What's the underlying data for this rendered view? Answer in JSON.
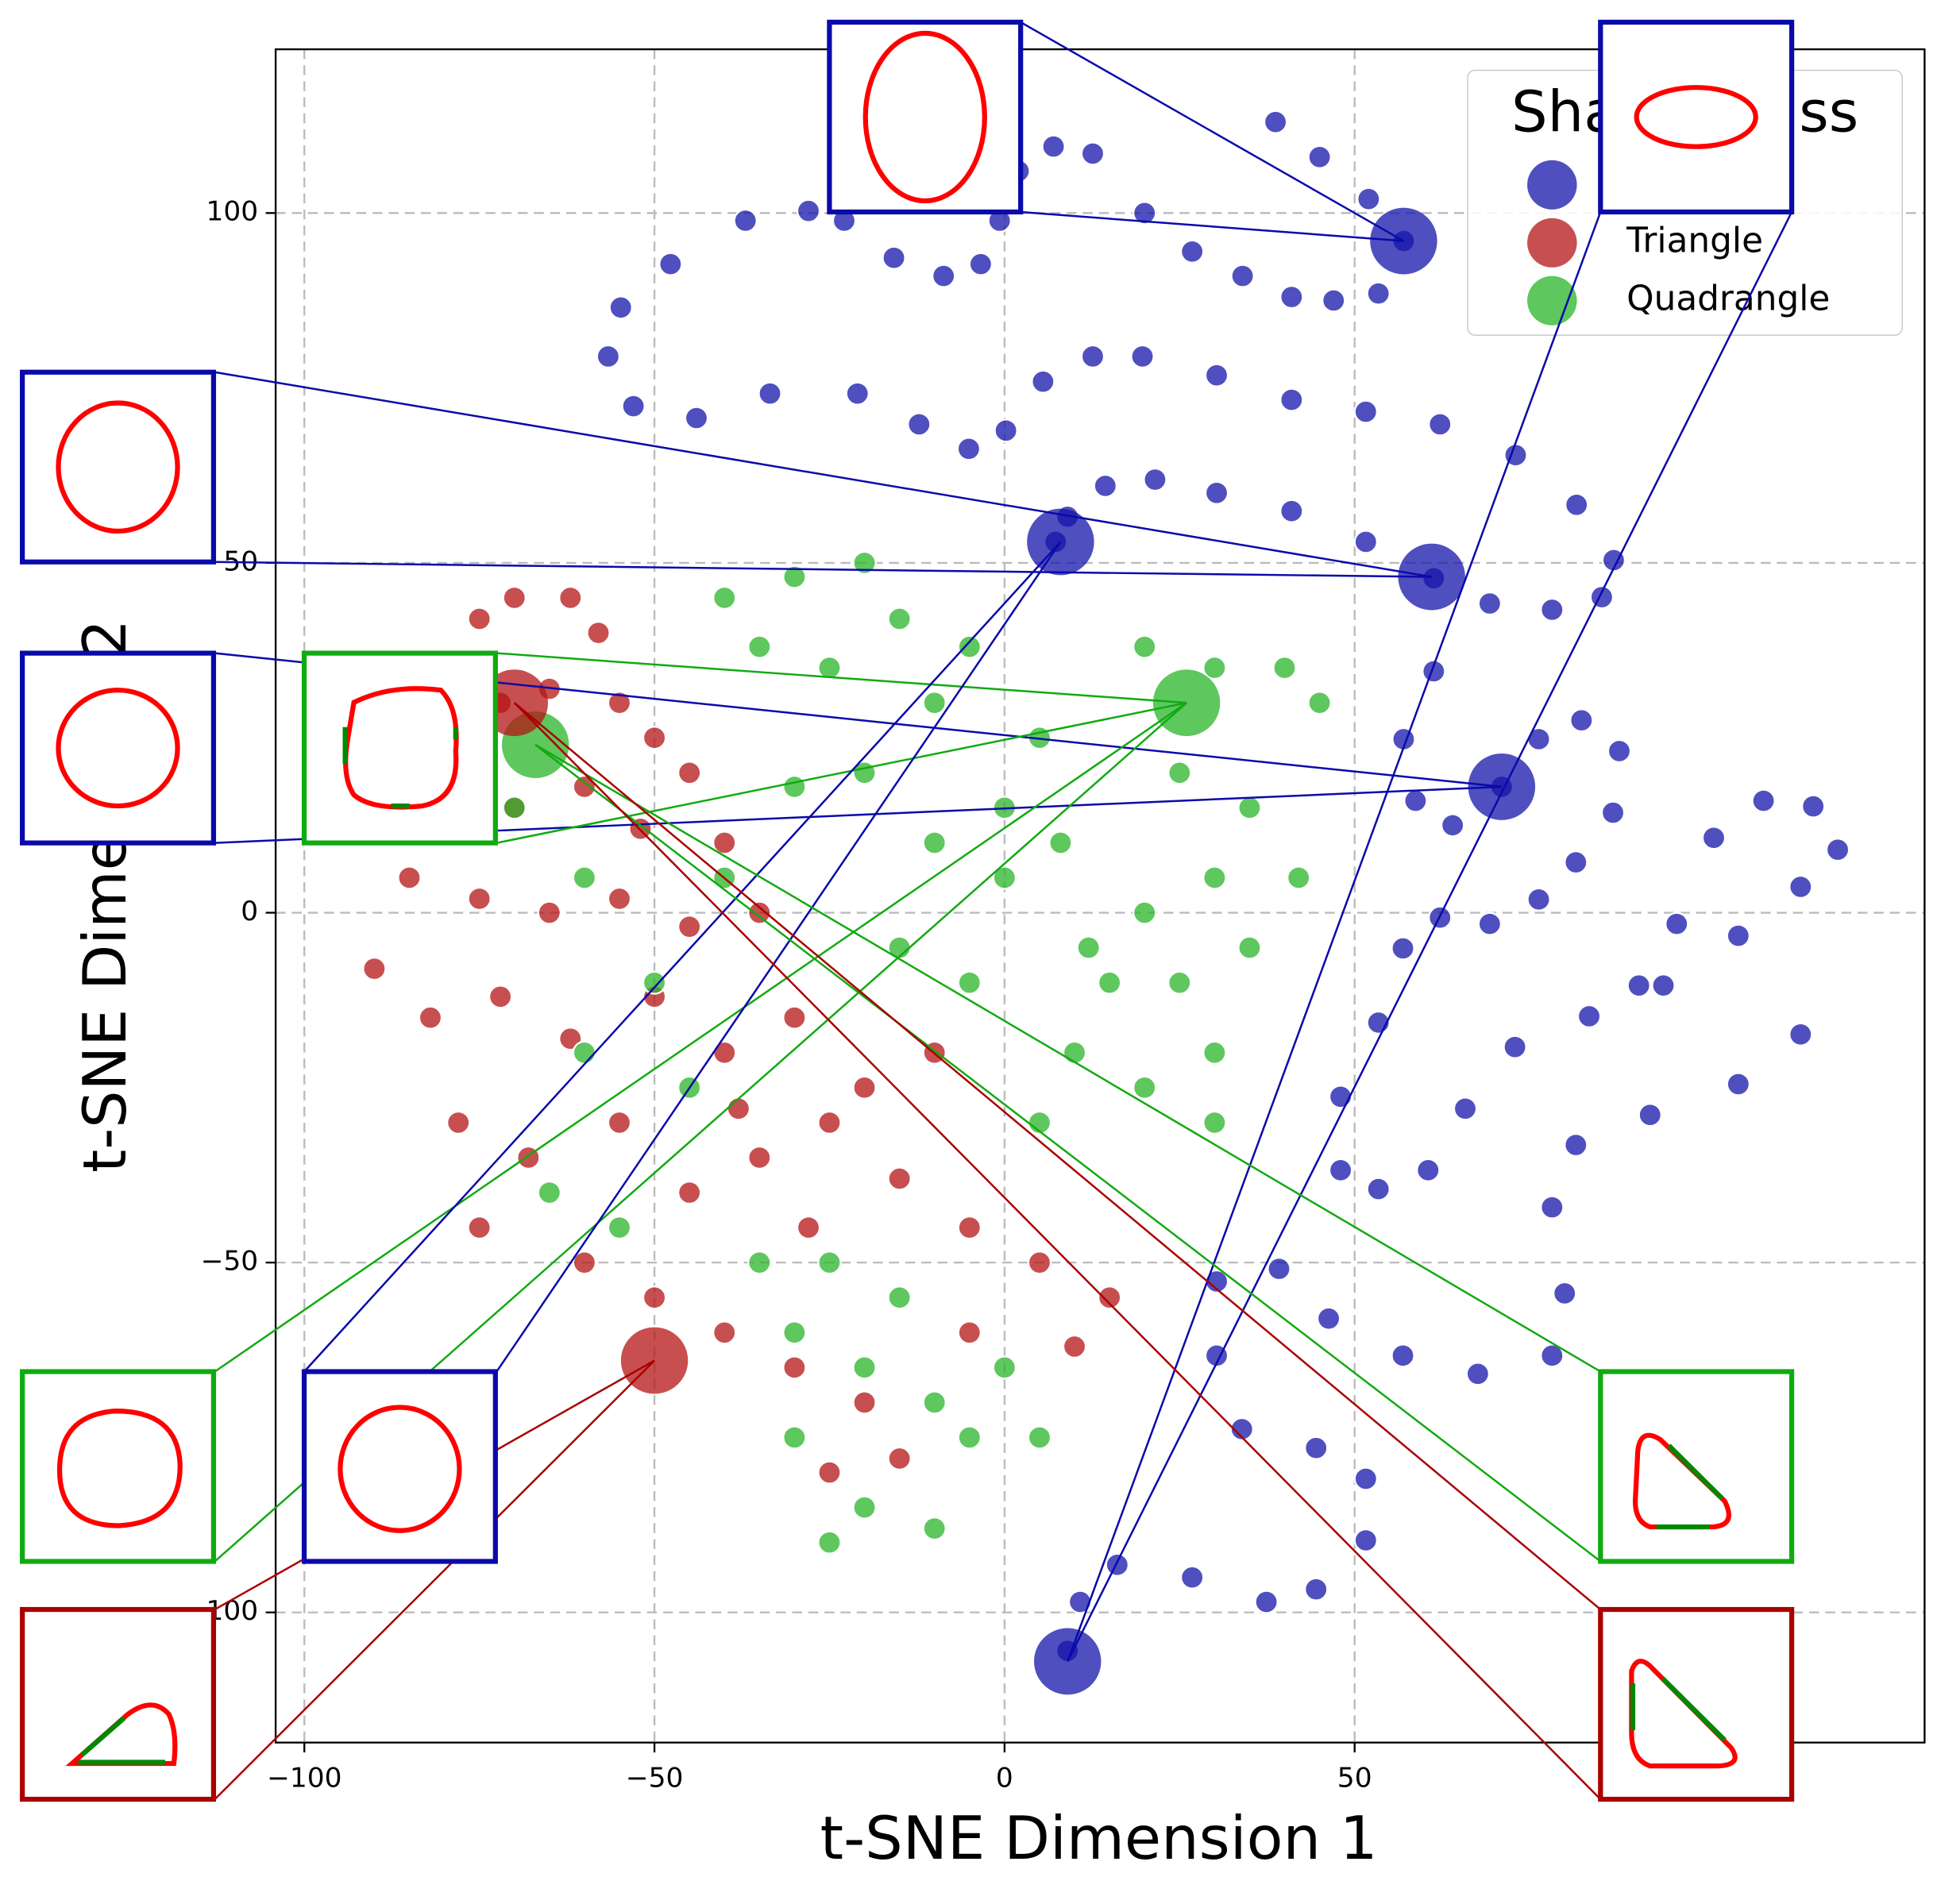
{
  "chart_data": {
    "type": "scatter",
    "xlabel": "t-SNE Dimension 1",
    "ylabel": "t-SNE Dimension 2",
    "legend_title": "Shape Class",
    "legend": "upper right",
    "grid": true,
    "xlim": [
      -104.1,
      131.4
    ],
    "ylim": [
      -118.6,
      123.4
    ],
    "xticks": [
      {
        "value": -100,
        "label": "−100"
      },
      {
        "value": -50,
        "label": "−50"
      },
      0,
      50
    ],
    "yticks": [
      {
        "value": -100,
        "label": "−100"
      },
      {
        "value": -50,
        "label": "−50"
      },
      0,
      50,
      100
    ],
    "series": [
      {
        "name": "Circle",
        "color": "#1414aa",
        "x": [
          38.7,
          45,
          52,
          57,
          53.4,
          47,
          41,
          34,
          26.8,
          20,
          12.6,
          7,
          2,
          -0.7,
          -3.4,
          -8.7,
          -15.8,
          -22.9,
          -28,
          -37,
          -47.7,
          -54.8,
          -56.6,
          -53,
          -44,
          -33.5,
          -21,
          -12.2,
          -5.1,
          0.2,
          5.5,
          12.6,
          19.7,
          30.3,
          41,
          51.6,
          62.2,
          73,
          81.7,
          87,
          85.3,
          78.2,
          69.3,
          61.3,
          51.6,
          41,
          30.3,
          21.5,
          14.4,
          9,
          7.3,
          61.3,
          57,
          58.7,
          64,
          71,
          76.3,
          82.4,
          87.8,
          86.9,
          81.6,
          76.3,
          69.3,
          62.2,
          56.9,
          53.4,
          48,
          48,
          53.4,
          60.5,
          65.8,
          72.9,
          83.5,
          94.1,
          104.8,
          113.7,
          119,
          115.5,
          108.4,
          101.3,
          96,
          90.6,
          81.6,
          92.2,
          104.8,
          113.7,
          78.2,
          80,
          78.2,
          67.6,
          56.9,
          46.3,
          39.2,
          30.3,
          30.3,
          33.9,
          44.5,
          51.6,
          51.6,
          44.5,
          37.4,
          26.8,
          16.1,
          10.8,
          9
        ],
        "y": [
          113,
          108,
          102,
          96,
          88.5,
          87.5,
          88,
          91,
          94.5,
          100,
          108.5,
          109.5,
          106,
          98.9,
          92.7,
          91,
          93.6,
          98.9,
          100.3,
          98.9,
          92.7,
          86.5,
          79.5,
          72.4,
          70.7,
          74.2,
          74.2,
          69.8,
          66.3,
          68.9,
          75.9,
          79.5,
          79.5,
          76.8,
          73.3,
          71.6,
          69.8,
          65.4,
          58.3,
          50.4,
          45.1,
          43.3,
          44.2,
          47.8,
          53,
          57.4,
          60,
          61.9,
          61,
          56.6,
          53,
          34.5,
          24.8,
          16,
          12.5,
          18,
          24.8,
          27.5,
          23.1,
          14.3,
          7.2,
          1.9,
          -1.6,
          -0.7,
          -5.1,
          -15.7,
          -26.3,
          -36.8,
          -39.5,
          -36.8,
          -28,
          -19.2,
          -14.8,
          -10.4,
          -3.3,
          3.7,
          9,
          15.2,
          16,
          10.7,
          -1.6,
          -10.4,
          -33.2,
          -28.9,
          -24.5,
          -17.4,
          -42.1,
          -54.4,
          -63.3,
          -65.9,
          -63.3,
          -58,
          -50.9,
          -52.7,
          -63.3,
          -73.8,
          -76.5,
          -80.9,
          -89.7,
          -96.7,
          -98.5,
          -95,
          -93.2,
          -98.5,
          -105.5
        ]
      },
      {
        "name": "Triangle",
        "color": "#b41414",
        "x": [
          -75,
          -70,
          -62,
          -58,
          -80,
          -72,
          -65,
          -55,
          -50,
          -45,
          -78,
          -70,
          -60,
          -52,
          -40,
          -85,
          -75,
          -65,
          -55,
          -45,
          -35,
          -90,
          -82,
          -72,
          -62,
          -50,
          -40,
          -30,
          -20,
          -10,
          -78,
          -68,
          -55,
          -45,
          -35,
          -25,
          -15,
          -5,
          5,
          15,
          -75,
          -60,
          -50,
          -40,
          -30,
          -20,
          -15,
          -25,
          -5,
          10,
          -38,
          -28
        ],
        "y": [
          42,
          45,
          45,
          40,
          28,
          30,
          32,
          30,
          25,
          20,
          18,
          15,
          18,
          12,
          10,
          5,
          2,
          0,
          2,
          -2,
          0,
          -8,
          -15,
          -12,
          -18,
          -12,
          -20,
          -15,
          -25,
          -20,
          -30,
          -35,
          -30,
          -40,
          -35,
          -30,
          -38,
          -45,
          -50,
          -55,
          -45,
          -50,
          -55,
          -60,
          -65,
          -70,
          -78,
          -80,
          -60,
          -62,
          -28,
          -45
        ]
      },
      {
        "name": "Quadrangle",
        "color": "#28b428",
        "x": [
          -40,
          -30,
          -20,
          -15,
          -35,
          -25,
          -10,
          -5,
          5,
          0,
          -20,
          -30,
          20,
          30,
          40,
          45,
          25,
          35,
          42,
          30,
          20,
          15,
          25,
          35,
          30,
          20,
          10,
          5,
          30,
          0,
          -10,
          -40,
          -50,
          -60,
          -65,
          -45,
          -55,
          -35,
          -25,
          -15,
          -30,
          -20,
          -10,
          -30,
          -20,
          -10,
          -5,
          0,
          5,
          -25,
          -60,
          -70,
          -15,
          -5,
          8,
          12
        ],
        "y": [
          45,
          48,
          50,
          42,
          38,
          35,
          30,
          38,
          25,
          15,
          20,
          18,
          38,
          35,
          35,
          30,
          20,
          15,
          5,
          5,
          0,
          -10,
          -10,
          -5,
          -20,
          -25,
          -20,
          -30,
          -30,
          5,
          10,
          5,
          -10,
          -20,
          -40,
          -25,
          -45,
          -50,
          -50,
          -55,
          -60,
          -65,
          -70,
          -75,
          -85,
          -88,
          -75,
          -65,
          -75,
          -90,
          5,
          15,
          -5,
          -10,
          10,
          -5
        ]
      }
    ],
    "highlighted_points": [
      {
        "x": 57,
        "y": 96,
        "color": "#1414aa"
      },
      {
        "x": 61,
        "y": 48,
        "color": "#1414aa"
      },
      {
        "x": 71,
        "y": 18,
        "color": "#1414aa"
      },
      {
        "x": 8,
        "y": 53,
        "color": "#1414aa"
      },
      {
        "x": 9,
        "y": -107,
        "color": "#1414aa"
      },
      {
        "x": 26,
        "y": 30,
        "color": "#28b428"
      },
      {
        "x": -67,
        "y": 24,
        "color": "#28b428"
      },
      {
        "x": -50,
        "y": -64,
        "color": "#b41414"
      },
      {
        "x": -70,
        "y": 30,
        "color": "#b41414"
      }
    ]
  }
}
